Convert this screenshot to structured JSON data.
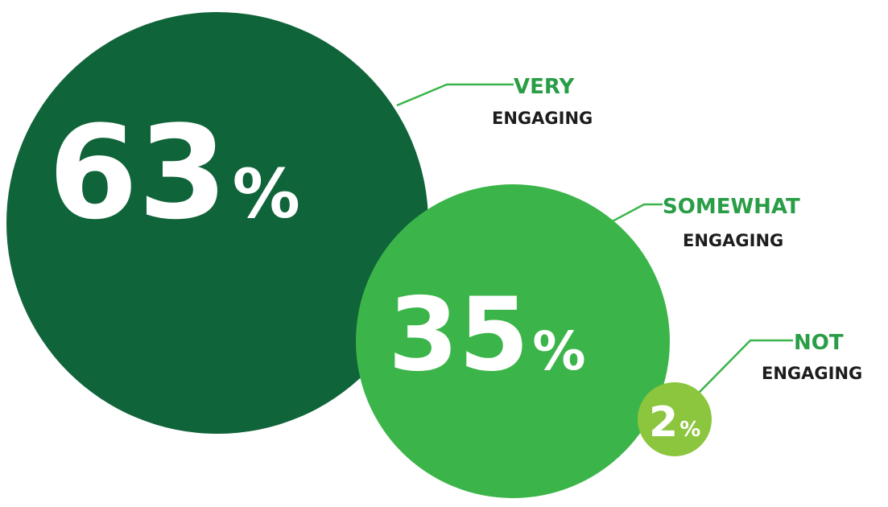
{
  "chart_data": {
    "type": "bubble",
    "series": [
      {
        "value": 63,
        "value_label": "63",
        "unit": "%",
        "label_top": "VERY",
        "label_sub": "ENGAGING",
        "color": "#10643a"
      },
      {
        "value": 35,
        "value_label": "35",
        "unit": "%",
        "label_top": "SOMEWHAT",
        "label_sub": "ENGAGING",
        "color": "#3bb54a"
      },
      {
        "value": 2,
        "value_label": "2",
        "unit": "%",
        "label_top": "NOT",
        "label_sub": "ENGAGING",
        "color": "#8cc63f"
      }
    ],
    "label_accent_color": "#2a9d47",
    "connector_color": "#3bb54a",
    "sub_label_color": "#1d1d1d"
  }
}
